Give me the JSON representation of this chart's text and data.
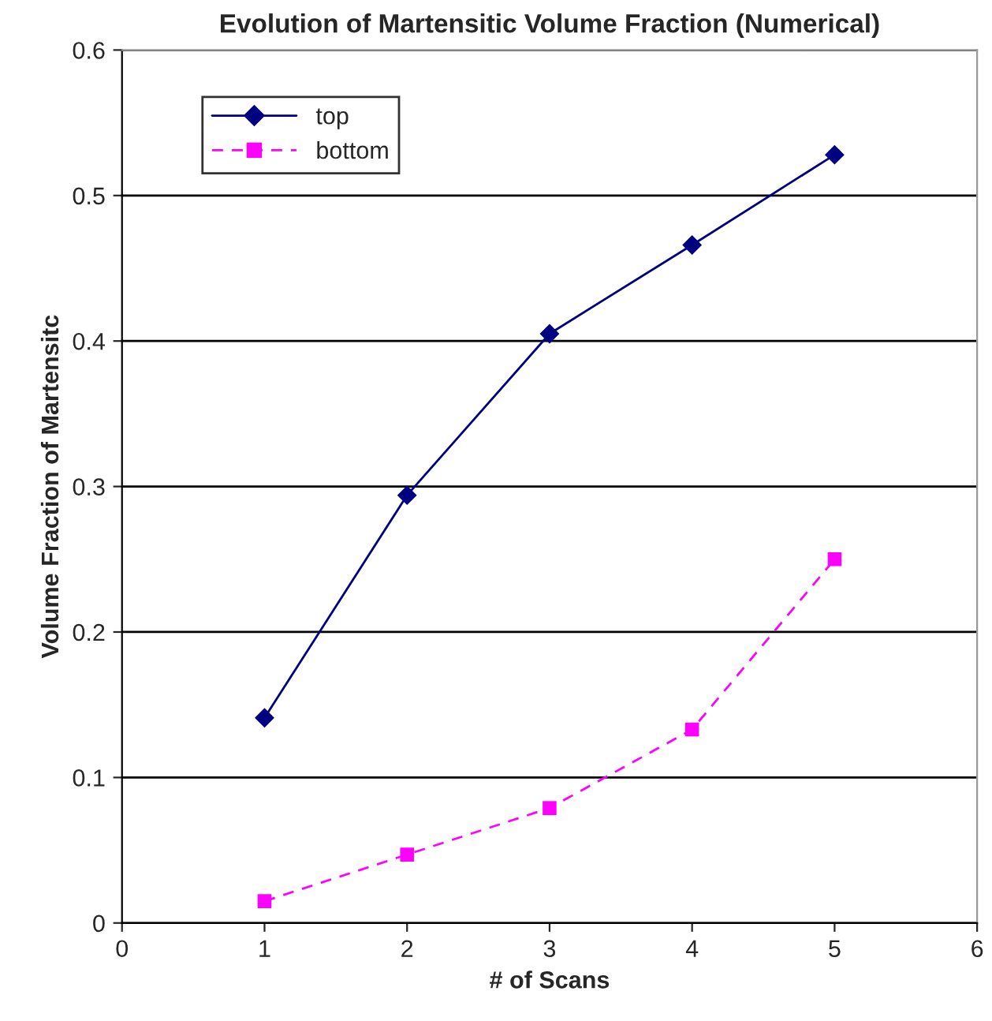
{
  "chart_data": {
    "type": "line",
    "title": "Evolution of Martensitic Volume Fraction (Numerical)",
    "xlabel": "# of Scans",
    "ylabel": "Volume Fraction of Martensitc",
    "x": [
      1,
      2,
      3,
      4,
      5
    ],
    "series": [
      {
        "name": "top",
        "color": "#000080",
        "marker": "diamond",
        "line_style": "solid",
        "values": [
          0.141,
          0.294,
          0.405,
          0.466,
          0.528
        ]
      },
      {
        "name": "bottom",
        "color": "#ff00ff",
        "marker": "square",
        "line_style": "dashed",
        "values": [
          0.015,
          0.047,
          0.079,
          0.133,
          0.25
        ]
      }
    ],
    "xlim": [
      0,
      6
    ],
    "xticks": [
      0,
      1,
      2,
      3,
      4,
      5,
      6
    ],
    "ylim": [
      0,
      0.6
    ],
    "yticks": [
      0,
      0.1,
      0.2,
      0.3,
      0.4,
      0.5,
      0.6
    ],
    "grid": "y",
    "legend": "top left"
  }
}
